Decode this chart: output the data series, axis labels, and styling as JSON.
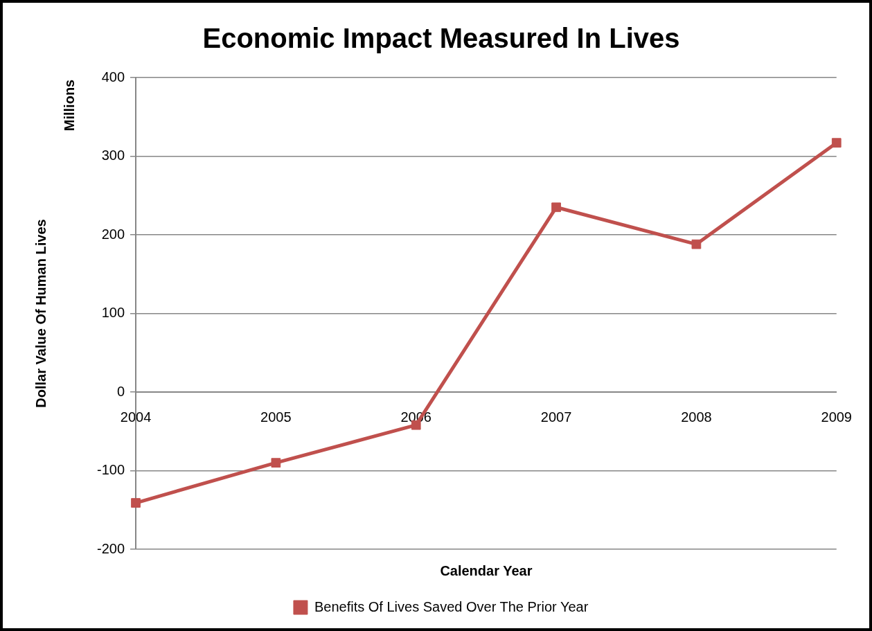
{
  "chart_data": {
    "type": "line",
    "title": "Economic Impact Measured In Lives",
    "xlabel": "Calendar Year",
    "ylabel": "Dollar Value Of Human Lives",
    "annotations": [
      "Millions"
    ],
    "categories": [
      "2004",
      "2005",
      "2006",
      "2007",
      "2008",
      "2009"
    ],
    "series": [
      {
        "name": "Benefits Of Lives Saved Over The Prior Year",
        "color": "#c0504d",
        "values": [
          -141,
          -90,
          -42,
          235,
          188,
          317
        ]
      }
    ],
    "ylim": [
      -200,
      400
    ],
    "yticks": [
      -200,
      -100,
      0,
      100,
      200,
      300,
      400
    ],
    "grid": "y",
    "legend": "bottom",
    "marker": "square",
    "line_style": "solid"
  }
}
